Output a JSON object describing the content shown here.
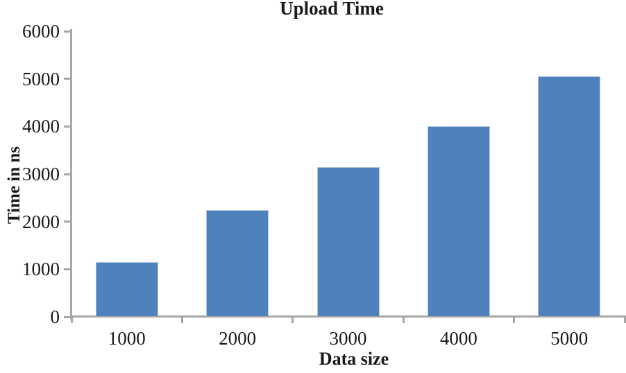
{
  "figure": {
    "title": "Upload Time",
    "x_axis_title": "Data size",
    "y_axis_title": "Time in ns"
  },
  "colors": {
    "bar_fill": "#4F81BD",
    "bar_border": "#B3C6E0",
    "axis_line": "#A6A6A6",
    "text": "#1A1A1A"
  },
  "chart_data": {
    "type": "bar",
    "title": "Upload Time",
    "xlabel": "Data size",
    "ylabel": "Time in ns",
    "categories": [
      "1000",
      "2000",
      "3000",
      "4000",
      "5000"
    ],
    "values": [
      1150,
      2250,
      3150,
      4000,
      5050
    ],
    "ylim": [
      0,
      6000
    ],
    "yticks": [
      0,
      1000,
      2000,
      3000,
      4000,
      5000,
      6000
    ],
    "grid": false,
    "legend": false
  }
}
